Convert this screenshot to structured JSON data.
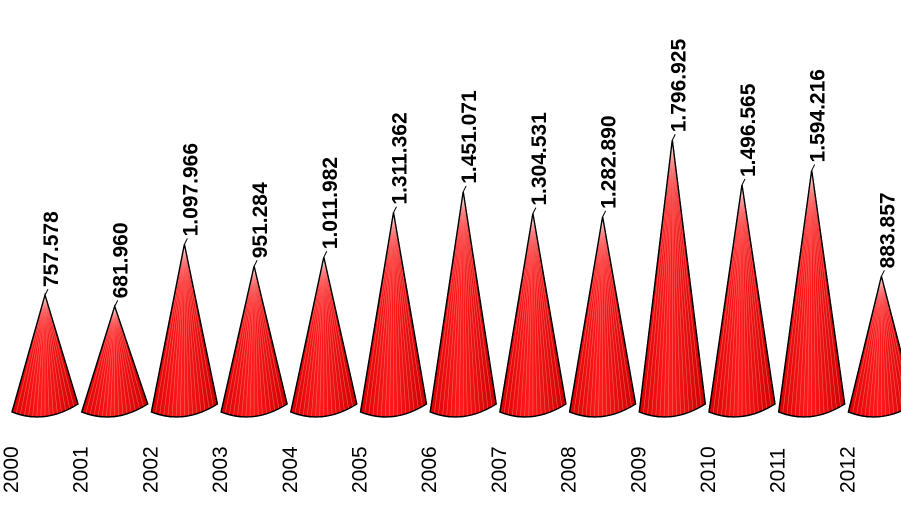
{
  "chart_data": {
    "type": "bar",
    "shape": "cone",
    "categories": [
      "2000",
      "2001",
      "2002",
      "2003",
      "2004",
      "2005",
      "2006",
      "2007",
      "2008",
      "2009",
      "2010",
      "2011",
      "2012"
    ],
    "values": [
      757578,
      681960,
      1097966,
      951284,
      1011982,
      1311362,
      1451071,
      1304531,
      1282890,
      1796925,
      1496565,
      1594216,
      883857
    ],
    "data_labels": [
      "757.578",
      "681.960",
      "1.097.966",
      "951.284",
      "1.011.982",
      "1.311.362",
      "1.451.071",
      "1.304.531",
      "1.282.890",
      "1.796.925",
      "1.496.565",
      "1.594.216",
      "883.857"
    ],
    "title": "",
    "xlabel": "",
    "ylabel": "",
    "ylim": [
      0,
      1900000
    ],
    "grid": false,
    "legend": "none",
    "colors": {
      "fill": "#ff0000",
      "stroke": "#000000",
      "stripe": "#ffffff"
    }
  }
}
